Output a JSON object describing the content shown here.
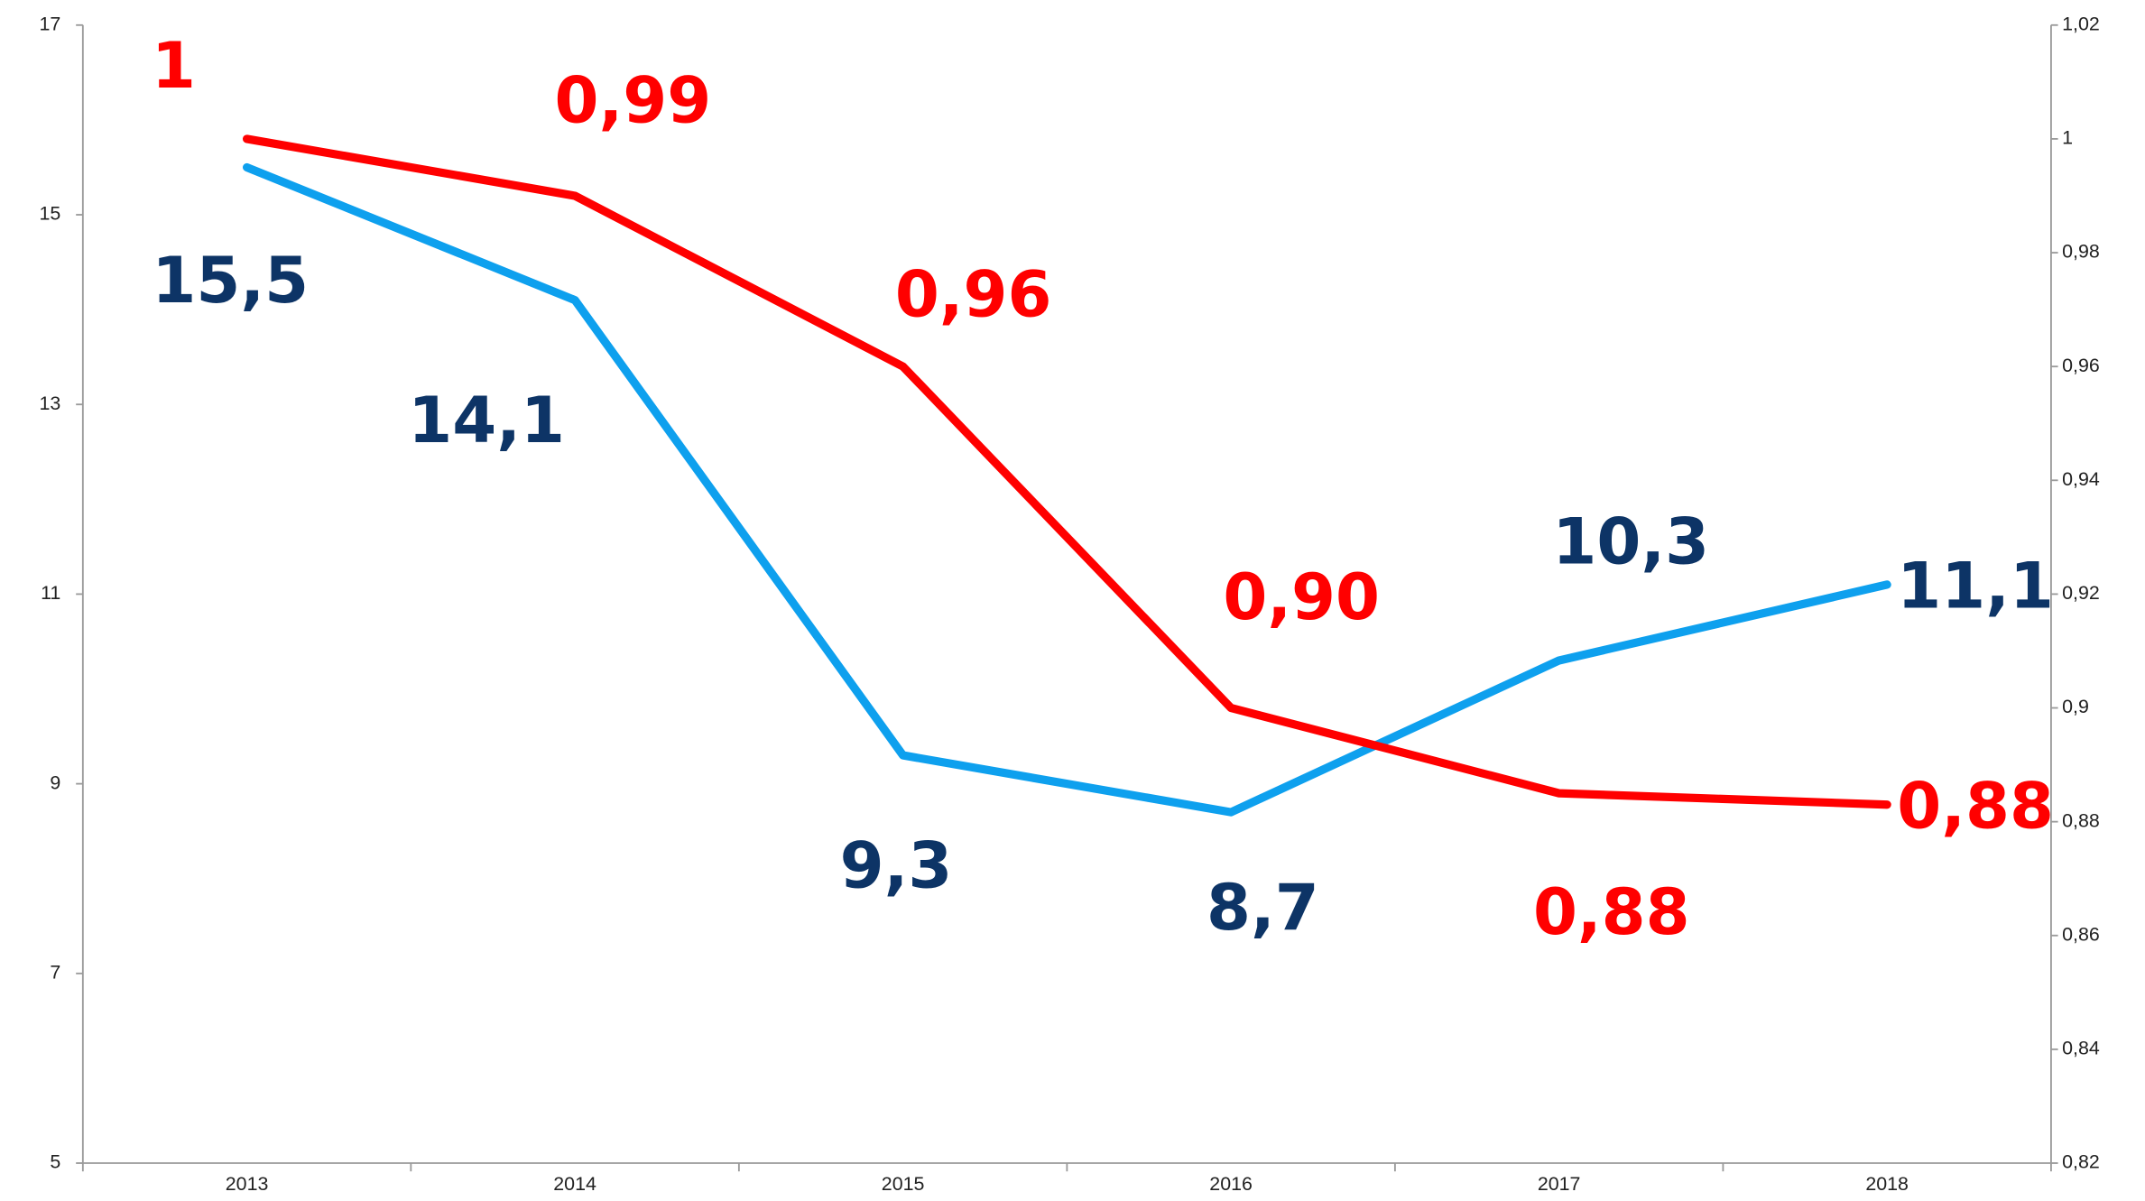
{
  "chart_data": {
    "type": "line",
    "categories": [
      "2013",
      "2014",
      "2015",
      "2016",
      "2017",
      "2018"
    ],
    "series": [
      {
        "color": "#0ea0ee",
        "label_color": "#0d3466",
        "axis": "y",
        "values": [
          15.5,
          14.1,
          9.3,
          8.7,
          10.3,
          11.1
        ],
        "value_labels": [
          "15,5",
          "14,1",
          "9,3",
          "8,7",
          "10,3",
          "11,1"
        ]
      },
      {
        "color": "#ff0000",
        "label_color": "#ff0000",
        "axis": "y2",
        "values": [
          1,
          0.99,
          0.96,
          0.9,
          0.885,
          0.883
        ],
        "value_labels": [
          "1",
          "0,99",
          "0,96",
          "0,90",
          "0,88",
          "0,88"
        ]
      }
    ],
    "ylim": [
      5,
      17
    ],
    "yticks": [
      5,
      7,
      9,
      11,
      13,
      15,
      17
    ],
    "y2lim": [
      0.82,
      1.02
    ],
    "y2ticks": [
      {
        "value": 0.82,
        "label": "0,82"
      },
      {
        "value": 0.84,
        "label": "0,84"
      },
      {
        "value": 0.86,
        "label": "0,86"
      },
      {
        "value": 0.88,
        "label": "0,88"
      },
      {
        "value": 0.9,
        "label": "0,9"
      },
      {
        "value": 0.92,
        "label": "0,92"
      },
      {
        "value": 0.94,
        "label": "0,94"
      },
      {
        "value": 0.96,
        "label": "0,96"
      },
      {
        "value": 0.98,
        "label": "0,98"
      },
      1,
      {
        "value": 1.02,
        "label": "1,02"
      }
    ],
    "grid": false
  }
}
